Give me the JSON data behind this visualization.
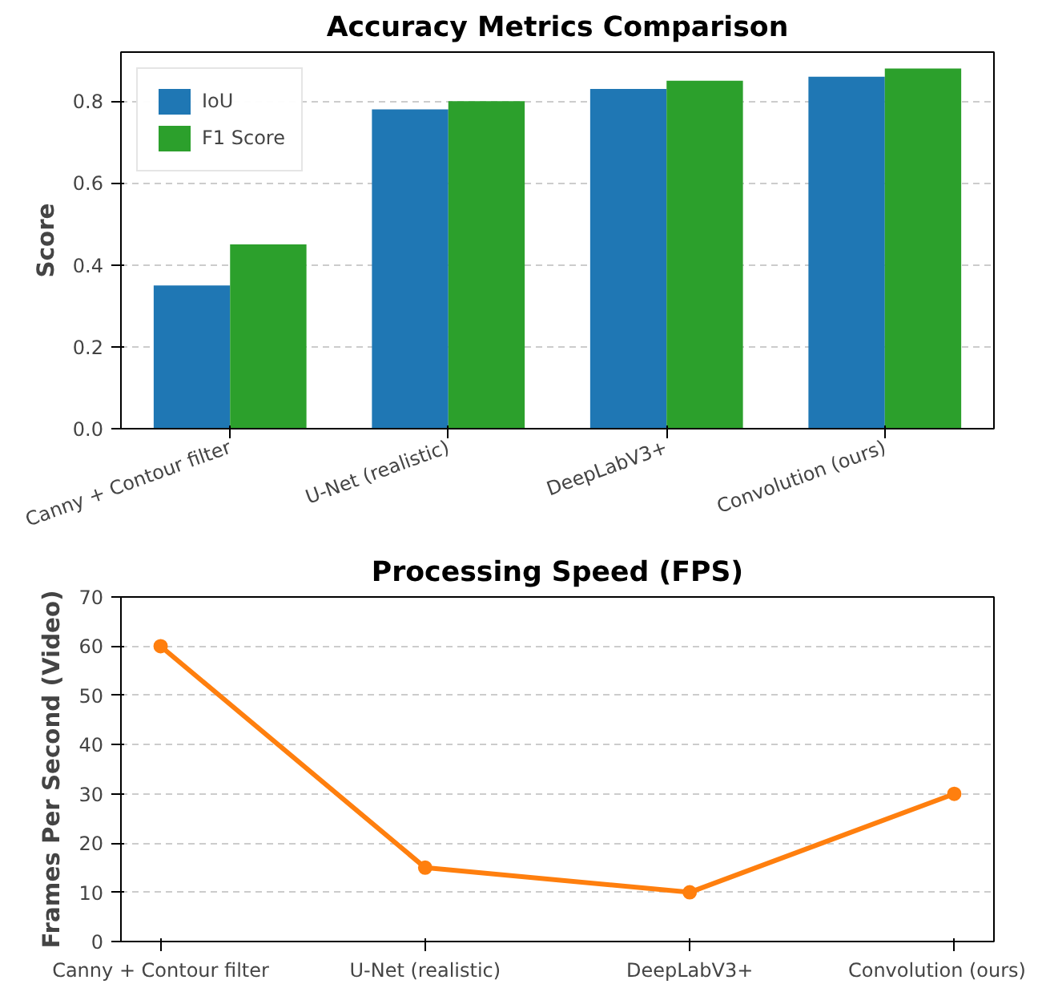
{
  "chart_data": [
    {
      "type": "bar",
      "title": "Accuracy Metrics Comparison",
      "ylabel": "Score",
      "categories": [
        "Canny + Contour filter",
        "U-Net (realistic)",
        "DeepLabV3+",
        "Convolution (ours)"
      ],
      "series": [
        {
          "name": "IoU",
          "color": "#1f77b4",
          "values": [
            0.35,
            0.78,
            0.83,
            0.86
          ]
        },
        {
          "name": "F1 Score",
          "color": "#2ca02c",
          "values": [
            0.45,
            0.8,
            0.85,
            0.88
          ]
        }
      ],
      "ylim": [
        0,
        0.92
      ],
      "yticks": [
        {
          "value": 0,
          "label": "0.0"
        },
        0.2,
        0.4,
        0.6,
        0.8
      ],
      "grid": "y",
      "legend": "top left"
    },
    {
      "type": "line",
      "title": "Processing Speed (FPS)",
      "ylabel": "Frames Per Second (Video)",
      "categories": [
        "Canny + Contour filter",
        "U-Net (realistic)",
        "DeepLabV3+",
        "Convolution (ours)"
      ],
      "series": [
        {
          "color": "#ff7f0e",
          "values": [
            60,
            15,
            10,
            30
          ]
        }
      ],
      "ylim": [
        0,
        70
      ],
      "yticks": [
        0,
        10,
        20,
        30,
        40,
        50,
        60,
        70
      ],
      "grid": "y",
      "marker": "circle",
      "line_style": "solid"
    }
  ]
}
